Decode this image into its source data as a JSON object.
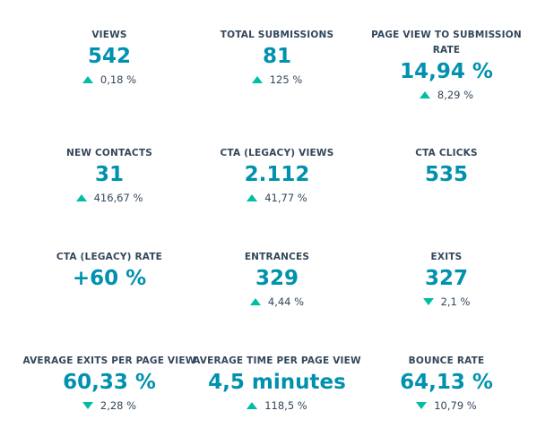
{
  "colors": {
    "value": "#0091ae",
    "label": "#33475b",
    "indicator": "#00bda5"
  },
  "kpis": [
    {
      "label": "VIEWS",
      "value": "542",
      "change": "0,18 %",
      "direction": "up"
    },
    {
      "label": "TOTAL SUBMISSIONS",
      "value": "81",
      "change": "125 %",
      "direction": "up"
    },
    {
      "label": "PAGE VIEW TO SUBMISSION RATE",
      "value": "14,94 %",
      "change": "8,29 %",
      "direction": "up"
    },
    {
      "label": "NEW CONTACTS",
      "value": "31",
      "change": "416,67 %",
      "direction": "up"
    },
    {
      "label": "CTA (LEGACY) VIEWS",
      "value": "2.112",
      "change": "41,77 %",
      "direction": "up"
    },
    {
      "label": "CTA CLICKS",
      "value": "535",
      "change": "",
      "direction": "none"
    },
    {
      "label": "CTA (LEGACY) RATE",
      "value": "+60 %",
      "change": "",
      "direction": "none"
    },
    {
      "label": "ENTRANCES",
      "value": "329",
      "change": "4,44 %",
      "direction": "up"
    },
    {
      "label": "EXITS",
      "value": "327",
      "change": "2,1 %",
      "direction": "down"
    },
    {
      "label": "AVERAGE EXITS PER PAGE VIEW",
      "value": "60,33 %",
      "change": "2,28 %",
      "direction": "down"
    },
    {
      "label": "AVERAGE TIME PER PAGE VIEW",
      "value": "4,5 minutes",
      "change": "118,5 %",
      "direction": "up"
    },
    {
      "label": "BOUNCE RATE",
      "value": "64,13 %",
      "change": "10,79 %",
      "direction": "down"
    }
  ]
}
